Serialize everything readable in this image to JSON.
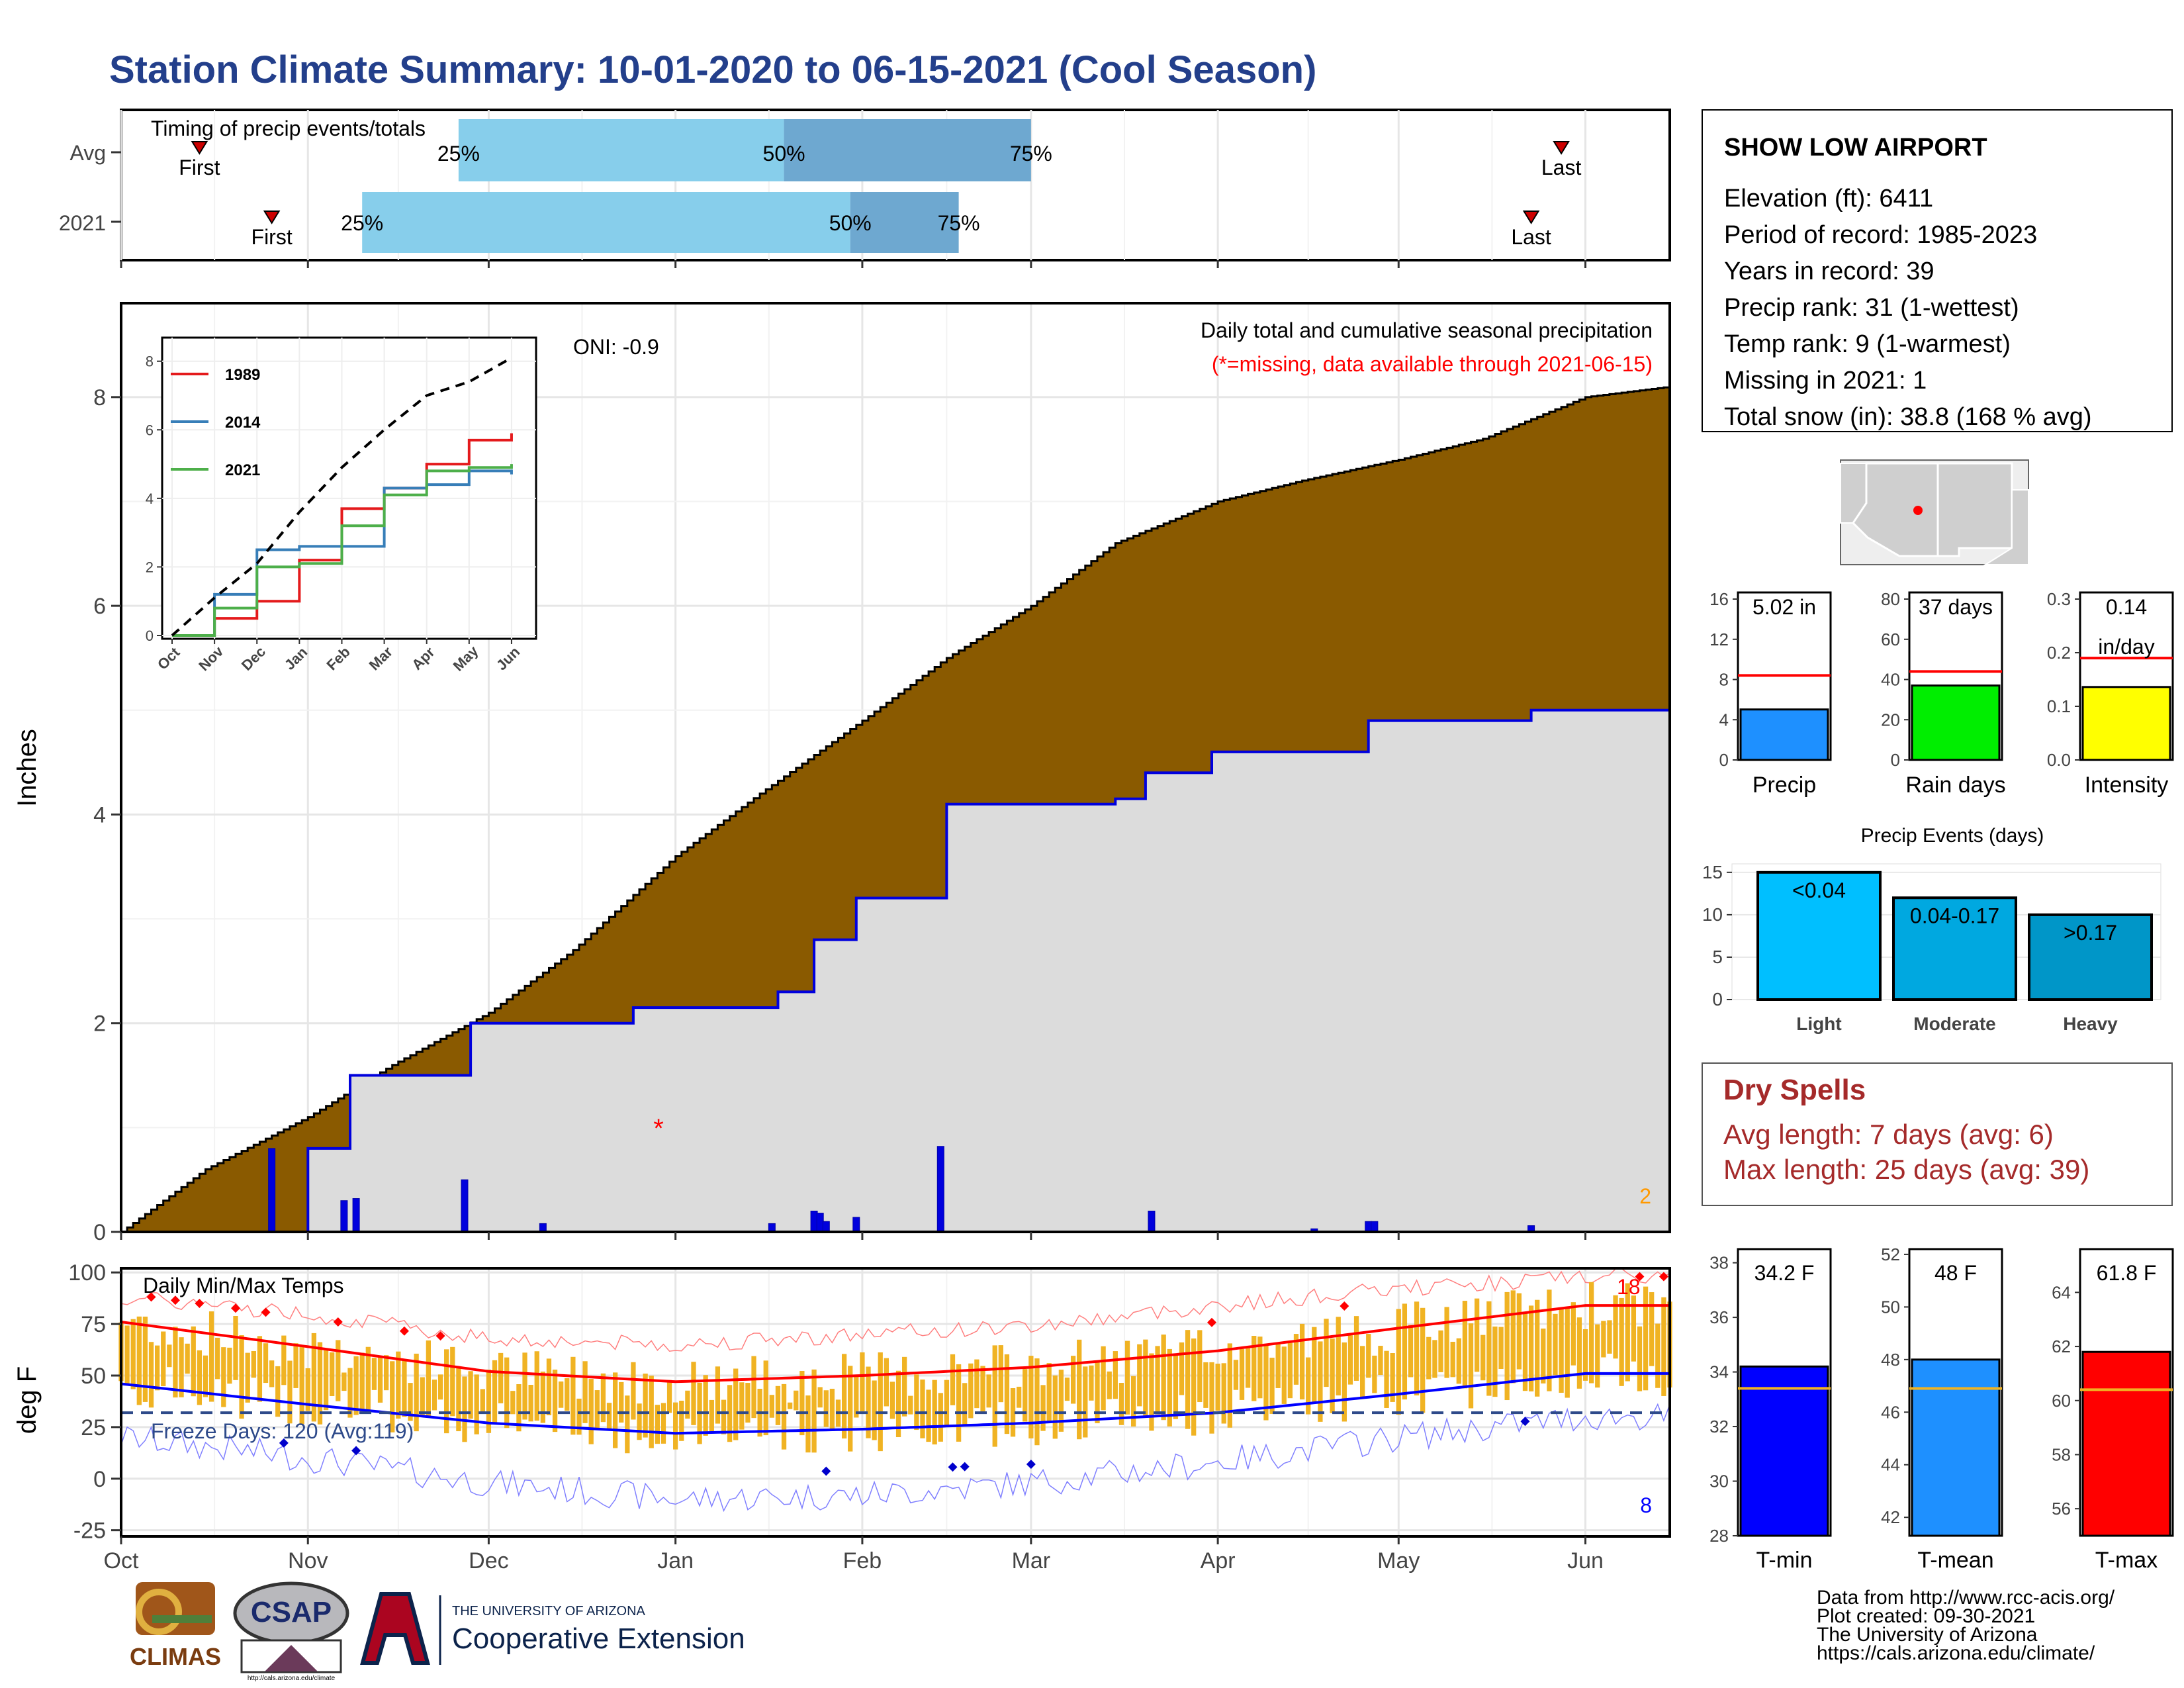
{
  "title": "Station Climate Summary: 10-01-2020 to 06-15-2021 (Cool Season)",
  "colors": {
    "title": "#233f8b",
    "brown": "#8a5a00",
    "lightgray": "#dcdcdc",
    "blueline": "#0000dd",
    "orange": "#f0b323",
    "red": "#ff0000",
    "dryspell": "#a52a2a"
  },
  "months": [
    "Oct",
    "Nov",
    "Dec",
    "Jan",
    "Feb",
    "Mar",
    "Apr",
    "May",
    "Jun"
  ],
  "timing": {
    "label": "Timing of precip events/totals",
    "rows": [
      {
        "name": "Avg",
        "first_label": "First",
        "last_label": "Last",
        "first_date": "2020-10-14",
        "last_date": "2021-05-28",
        "p25": "2020-11-26",
        "p50": "2021-01-19",
        "p75": "2021-03-01"
      },
      {
        "name": "2021",
        "first_label": "First",
        "last_label": "Last",
        "first_date": "2020-10-26",
        "last_date": "2021-05-23",
        "p25": "2020-11-10",
        "p50": "2021-01-30",
        "p75": "2021-02-17"
      }
    ],
    "pct_labels": [
      "25%",
      "50%",
      "75%"
    ]
  },
  "main": {
    "ylabel": "Inches",
    "yticks": [
      "0",
      "2",
      "4",
      "6",
      "8"
    ],
    "oni": "ONI: -0.9",
    "desc1": "Daily total and cumulative seasonal precipitation",
    "desc2": "(*=missing, data available through 2021-06-15)",
    "corner_count": "2"
  },
  "inset": {
    "yticks": [
      "0",
      "2",
      "4",
      "6",
      "8"
    ],
    "xticks": [
      "Oct",
      "Nov",
      "Dec",
      "Jan",
      "Feb",
      "Mar",
      "Apr",
      "May",
      "Jun"
    ],
    "legend": [
      {
        "name": "1989",
        "color": "#e41a1c"
      },
      {
        "name": "2014",
        "color": "#377eb8"
      },
      {
        "name": "2021",
        "color": "#4daf4a"
      }
    ]
  },
  "temps": {
    "label": "Daily Min/Max Temps",
    "ylabel": "deg F",
    "yticks": [
      "100",
      "75",
      "50",
      "25",
      "0",
      "-25"
    ],
    "freeze": "Freeze Days: 120 (Avg:119)",
    "count_hot": "18",
    "count_cold": "8"
  },
  "station": {
    "name": "SHOW LOW AIRPORT",
    "lines": [
      "Elevation (ft): 6411",
      "Period of record: 1985-2023",
      "Years in record: 39",
      "Precip rank: 31 (1-wettest)",
      "Temp rank: 9 (1-warmest)",
      "Missing in 2021: 1",
      "Total snow (in): 38.8 (168 % avg)"
    ]
  },
  "mini_precip": [
    {
      "label": "Precip",
      "value_text": "5.02 in",
      "value": 5.02,
      "avg": 8.4,
      "ymax": 16,
      "ticks": [
        "16",
        "12",
        "8",
        "4",
        "0"
      ],
      "color": "#1e90ff"
    },
    {
      "label": "Rain days",
      "value_text": "37 days",
      "value": 37,
      "avg": 44,
      "ymax": 80,
      "ticks": [
        "80",
        "60",
        "40",
        "20",
        "0"
      ],
      "color": "#00ee00"
    },
    {
      "label": "Intensity",
      "value_text": "0.14",
      "value_text2": "in/day",
      "value": 0.136,
      "avg": 0.19,
      "ymax": 0.3,
      "ticks": [
        "0.3",
        "0.2",
        "0.1",
        "0.0"
      ],
      "color": "#ffff00"
    }
  ],
  "events": {
    "title": "Precip Events (days)",
    "yticks": [
      "15",
      "10",
      "5",
      "0"
    ],
    "bars": [
      {
        "cat": "Light",
        "label": "<0.04",
        "value": 15,
        "color": "#00bfff"
      },
      {
        "cat": "Moderate",
        "label": "0.04-0.17",
        "value": 12,
        "color": "#00a8e0"
      },
      {
        "cat": "Heavy",
        "label": ">0.17",
        "value": 10,
        "color": "#0096c8"
      }
    ]
  },
  "dry": {
    "title": "Dry Spells",
    "avg": "Avg length: 7 days (avg: 6)",
    "max": "Max length: 25 days (avg: 39)"
  },
  "mini_temp": [
    {
      "label": "T-min",
      "value_text": "34.2 F",
      "value": 34.2,
      "avg": 33.4,
      "ymin": 28,
      "ymax": 38.5,
      "ticks": [
        "38",
        "36",
        "34",
        "32",
        "30",
        "28"
      ],
      "color": "#0000ff"
    },
    {
      "label": "T-mean",
      "value_text": "48 F",
      "value": 48,
      "avg": 46.9,
      "ymin": 41.3,
      "ymax": 52.2,
      "ticks": [
        "52",
        "50",
        "48",
        "46",
        "44",
        "42"
      ],
      "color": "#1e90ff"
    },
    {
      "label": "T-max",
      "value_text": "61.8 F",
      "value": 61.8,
      "avg": 60.4,
      "ymin": 55,
      "ymax": 65.6,
      "ticks": [
        "64",
        "62",
        "60",
        "58",
        "56"
      ],
      "color": "#ff0000"
    }
  ],
  "credits": [
    "Data from http://www.rcc-acis.org/",
    "Plot created: 09-30-2021",
    "The University of Arizona",
    "https://cals.arizona.edu/climate/"
  ],
  "logos": {
    "climas": "CLIMAS",
    "csap": "CSAP",
    "csap_url": "http://cals.arizona.edu/climate",
    "ua_small": "THE UNIVERSITY OF ARIZONA",
    "ua_big": "Cooperative Extension",
    "ua_letter": "A"
  },
  "chart_data": [
    {
      "type": "area",
      "title": "Daily total and cumulative seasonal precipitation",
      "ylabel": "Inches",
      "ylim": [
        0,
        8.9
      ],
      "series": [
        {
          "name": "Average cumulative",
          "x": [
            "2020-10-01",
            "2020-10-15",
            "2020-11-01",
            "2020-11-15",
            "2020-12-01",
            "2020-12-15",
            "2021-01-01",
            "2021-01-15",
            "2021-02-01",
            "2021-02-15",
            "2021-03-01",
            "2021-03-15",
            "2021-04-01",
            "2021-04-15",
            "2021-05-01",
            "2021-05-15",
            "2021-06-01",
            "2021-06-15"
          ],
          "values": [
            0,
            0.6,
            1.1,
            1.6,
            2.1,
            2.7,
            3.6,
            4.2,
            4.9,
            5.5,
            6.0,
            6.6,
            7.0,
            7.2,
            7.4,
            7.6,
            8.0,
            8.1
          ]
        },
        {
          "name": "2021 cumulative",
          "x": [
            "2020-10-01",
            "2020-10-26",
            "2020-11-01",
            "2020-11-08",
            "2020-11-27",
            "2020-11-28",
            "2020-12-25",
            "2021-01-17",
            "2021-01-18",
            "2021-01-24",
            "2021-01-31",
            "2021-02-14",
            "2021-02-15",
            "2021-03-15",
            "2021-03-20",
            "2021-03-31",
            "2021-04-26",
            "2021-05-23",
            "2021-06-15"
          ],
          "values": [
            0,
            0,
            0.8,
            1.5,
            1.5,
            2.0,
            2.15,
            2.15,
            2.3,
            2.8,
            3.2,
            3.2,
            4.1,
            4.15,
            4.4,
            4.6,
            4.9,
            5.0,
            5.02
          ]
        }
      ],
      "daily_bars": {
        "x": [
          "2020-10-26",
          "2020-11-07",
          "2020-11-09",
          "2020-11-27",
          "2020-12-10",
          "2021-01-17",
          "2021-01-24",
          "2021-01-25",
          "2021-01-26",
          "2021-01-31",
          "2021-02-14",
          "2021-03-21",
          "2021-04-17",
          "2021-04-26",
          "2021-04-27",
          "2021-05-23"
        ],
        "values": [
          0.8,
          0.3,
          0.32,
          0.5,
          0.08,
          0.08,
          0.2,
          0.18,
          0.1,
          0.14,
          0.82,
          0.2,
          0.03,
          0.1,
          0.1,
          0.06
        ]
      },
      "missing": {
        "x": "2020-12-27",
        "value": 1.0
      }
    },
    {
      "type": "line",
      "title": "",
      "ylim": [
        0,
        8.4
      ],
      "series": [
        {
          "name": "1989",
          "x": [
            "Oct",
            "Nov",
            "Dec",
            "Jan",
            "Feb",
            "Mar",
            "Apr",
            "May",
            "Jun"
          ],
          "values": [
            0,
            0.5,
            1.0,
            2.2,
            3.7,
            4.3,
            5.0,
            5.7,
            5.9
          ]
        },
        {
          "name": "2014",
          "x": [
            "Oct",
            "Nov",
            "Dec",
            "Jan",
            "Feb",
            "Mar",
            "Apr",
            "May",
            "Jun"
          ],
          "values": [
            0,
            1.2,
            2.5,
            2.6,
            2.6,
            4.3,
            4.4,
            4.8,
            4.7
          ]
        },
        {
          "name": "2021",
          "x": [
            "Oct",
            "Nov",
            "Dec",
            "Jan",
            "Feb",
            "Mar",
            "Apr",
            "May",
            "Jun"
          ],
          "values": [
            0,
            0.8,
            2.0,
            2.1,
            3.2,
            4.1,
            4.8,
            4.9,
            5.0
          ]
        },
        {
          "name": "Avg",
          "x": [
            "Oct",
            "Nov",
            "Dec",
            "Jan",
            "Feb",
            "Mar",
            "Apr",
            "May",
            "Jun"
          ],
          "values": [
            0,
            1.1,
            2.1,
            3.6,
            4.9,
            6.0,
            7.0,
            7.4,
            8.1
          ]
        }
      ]
    },
    {
      "type": "bar",
      "title": "Daily Min/Max Temps",
      "ylabel": "deg F",
      "ylim": [
        -28,
        102
      ],
      "series": [
        {
          "name": "Avg max",
          "x": [
            "Oct",
            "Nov",
            "Dec",
            "Jan",
            "Feb",
            "Mar",
            "Apr",
            "May",
            "Jun"
          ],
          "values": [
            76,
            64,
            52,
            47,
            50,
            54,
            62,
            73,
            84
          ]
        },
        {
          "name": "Avg min",
          "x": [
            "Oct",
            "Nov",
            "Dec",
            "Jan",
            "Feb",
            "Mar",
            "Apr",
            "May",
            "Jun"
          ],
          "values": [
            46,
            36,
            27,
            22,
            24,
            27,
            32,
            41,
            51
          ]
        },
        {
          "name": "Record max",
          "x": [
            "Oct",
            "Nov",
            "Dec",
            "Jan",
            "Feb",
            "Mar",
            "Apr",
            "May",
            "Jun"
          ],
          "values": [
            88,
            80,
            68,
            65,
            70,
            74,
            84,
            92,
            98
          ]
        },
        {
          "name": "Record min",
          "x": [
            "Oct",
            "Nov",
            "Dec",
            "Jan",
            "Feb",
            "Mar",
            "Apr",
            "May",
            "Jun"
          ],
          "values": [
            20,
            10,
            -2,
            -10,
            -8,
            -2,
            8,
            20,
            30
          ]
        }
      ],
      "freeze_line": 32
    }
  ]
}
